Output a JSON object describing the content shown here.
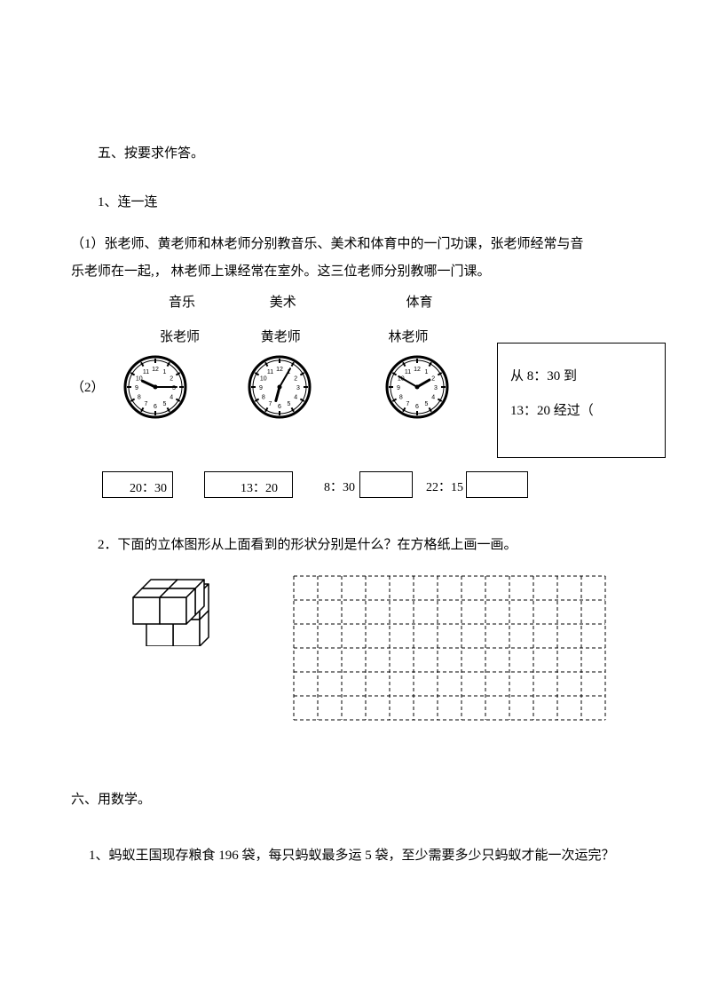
{
  "section5": {
    "title": "五、按要求作答。",
    "q1": {
      "label": "1、连一连",
      "p1_line1": "（1）张老师、黄老师和林老师分别教音乐、美术和体育中的一门功课，张老师经常与音",
      "p1_line2": "乐老师在一起,， 林老师上课经常在室外。这三位老师分别教哪一门课。",
      "subjects": {
        "music": "音乐",
        "art": "美术",
        "pe": "体育"
      },
      "teachers": {
        "zhang": "张老师",
        "huang": "黄老师",
        "lin": "林老师"
      },
      "p2_label": "（2）",
      "text_box_l1": "从 8：30 到",
      "text_box_l2": "13：20 经过（",
      "times": {
        "t1": "20：30",
        "t2": "13：20",
        "t3": "8：30",
        "t4": "22：15"
      },
      "clocks": {
        "c1": {
          "hour_angle": -65,
          "min_angle": 90
        },
        "c2": {
          "hour_angle": 195,
          "min_angle": 30
        },
        "c3": {
          "hour_angle": 60,
          "min_angle": -60
        }
      }
    },
    "q2": {
      "text": "2．下面的立体图形从上面看到的形状分别是什么？在方格纸上画一画。",
      "grid": {
        "cols": 13,
        "rows": 6,
        "cell": 27
      }
    }
  },
  "section6": {
    "title": "六、用数学。",
    "q1": "1、蚂蚁王国现存粮食 196 袋，每只蚂蚁最多运 5 袋，至少需要多少只蚂蚁才能一次运完？"
  }
}
